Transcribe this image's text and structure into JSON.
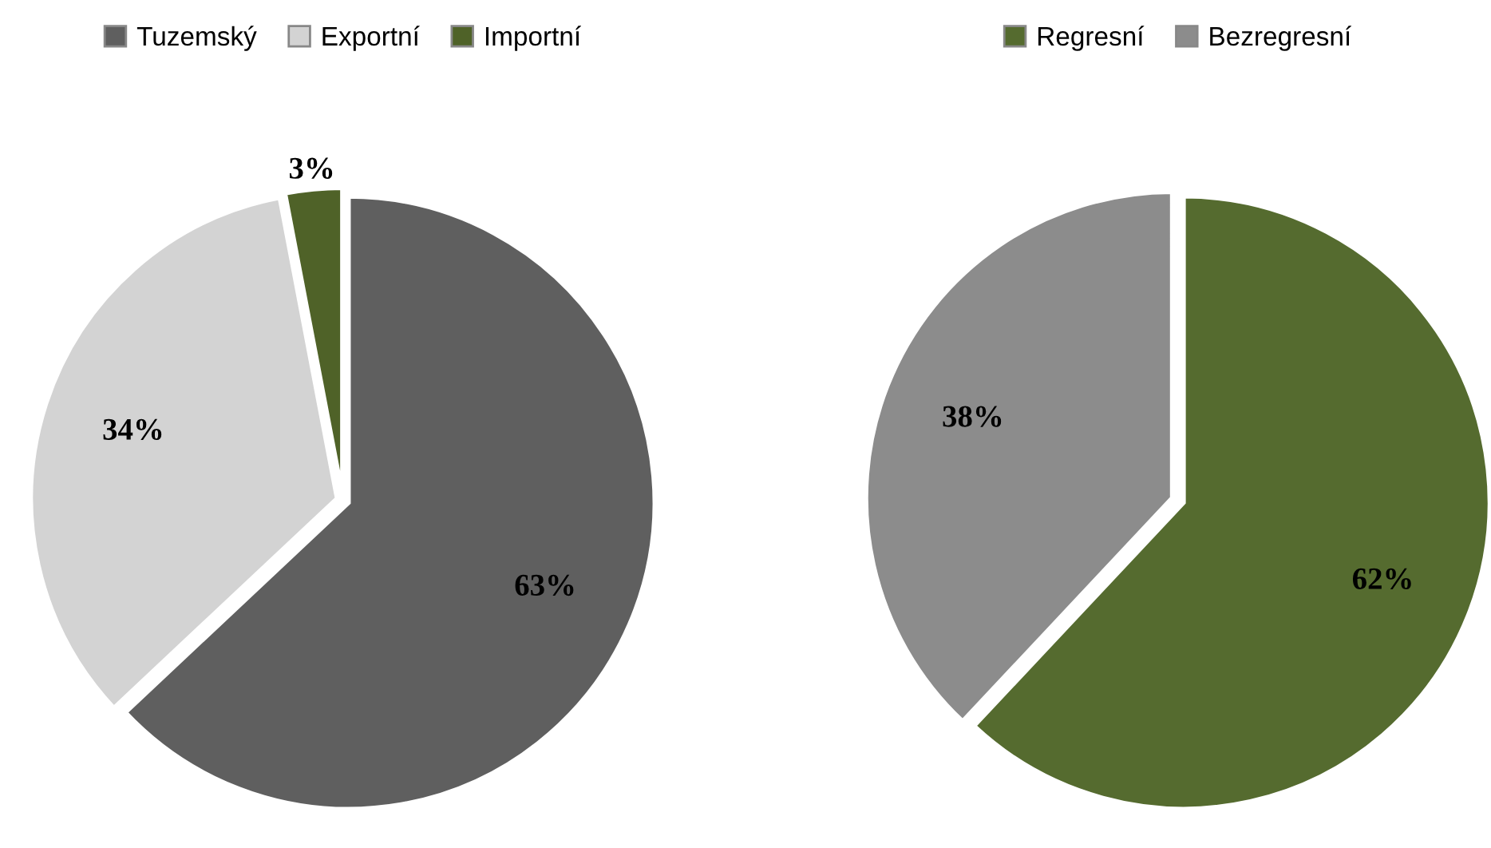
{
  "chart_data": [
    {
      "type": "pie",
      "categories": [
        "Tuzemský",
        "Exportní",
        "Importní"
      ],
      "values": [
        63,
        34,
        3
      ],
      "colors": [
        "#5f5f5f",
        "#d3d3d3",
        "#4f6228"
      ],
      "value_labels": [
        "63%",
        "34%",
        "3%"
      ],
      "legend": "top"
    },
    {
      "type": "pie",
      "categories": [
        "Regresní",
        "Bezregresní"
      ],
      "values": [
        62,
        38
      ],
      "colors": [
        "#556b2f",
        "#8c8c8c"
      ],
      "value_labels": [
        "62%",
        "38%"
      ],
      "legend": "top"
    }
  ]
}
